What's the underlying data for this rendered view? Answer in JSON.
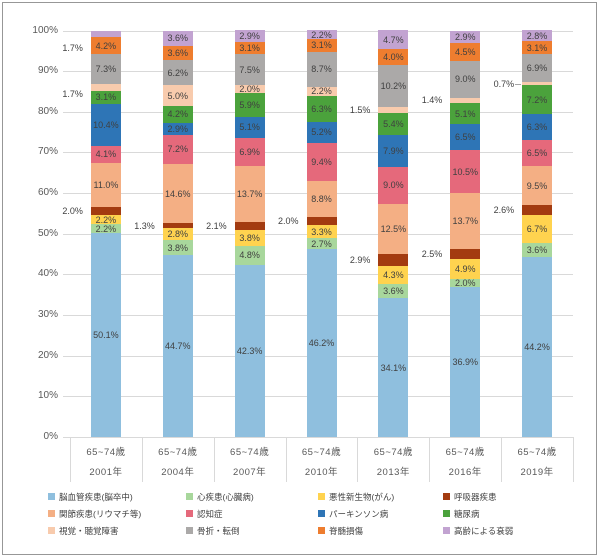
{
  "chart_data": {
    "type": "bar",
    "stacked": true,
    "percent_stacked": true,
    "title": "",
    "x_axis": {
      "group_label": "65~74歳",
      "categories": [
        "2001年",
        "2004年",
        "2007年",
        "2010年",
        "2013年",
        "2016年",
        "2019年"
      ]
    },
    "y_axis": {
      "min": 0,
      "max": 100,
      "grid": true,
      "ticks": [
        "0%",
        "10%",
        "20%",
        "30%",
        "40%",
        "50%",
        "60%",
        "70%",
        "80%",
        "90%",
        "100%"
      ]
    },
    "legend": {
      "position": "bottom",
      "columns": 4
    },
    "series": [
      {
        "name": "脳血管疾患(脳卒中)",
        "color": "#8FBFDE",
        "values": [
          50.1,
          44.7,
          42.3,
          46.2,
          34.1,
          36.9,
          44.2
        ]
      },
      {
        "name": "心疾患(心臓病)",
        "color": "#A8D79C",
        "values": [
          2.2,
          3.8,
          4.8,
          2.7,
          3.6,
          2.0,
          3.6
        ]
      },
      {
        "name": "悪性新生物(がん)",
        "color": "#FFD34F",
        "values": [
          2.2,
          2.8,
          3.8,
          3.3,
          4.3,
          4.9,
          6.7
        ]
      },
      {
        "name": "呼吸器疾患",
        "color": "#A33B10",
        "values": [
          2.0,
          1.3,
          2.1,
          2.0,
          2.9,
          2.5,
          2.6
        ],
        "outside_label_categories": [
          0,
          1,
          2,
          3,
          4,
          5,
          6
        ]
      },
      {
        "name": "関節疾患(リウマチ等)",
        "color": "#F4AF84",
        "values": [
          11.0,
          14.6,
          13.7,
          8.8,
          12.5,
          13.7,
          9.5
        ]
      },
      {
        "name": "認知症",
        "color": "#E5697B",
        "values": [
          4.1,
          7.2,
          6.9,
          9.4,
          9.0,
          10.5,
          6.5
        ]
      },
      {
        "name": "パーキンソン病",
        "color": "#2E75B6",
        "values": [
          10.4,
          2.9,
          5.1,
          5.2,
          7.9,
          6.5,
          6.3
        ]
      },
      {
        "name": "糖尿病",
        "color": "#4BA23C",
        "values": [
          3.1,
          4.2,
          5.9,
          6.3,
          5.4,
          5.1,
          7.2
        ]
      },
      {
        "name": "視覚・聴覚障害",
        "color": "#F8CBAD",
        "values": [
          1.7,
          5.0,
          2.0,
          2.2,
          1.5,
          1.4,
          0.7
        ],
        "outside_label_categories": [
          0,
          4,
          5,
          6
        ],
        "leader_line_categories": [
          6
        ]
      },
      {
        "name": "骨折・転倒",
        "color": "#ABA9A8",
        "values": [
          7.3,
          6.2,
          7.5,
          8.7,
          10.2,
          9.0,
          6.9
        ]
      },
      {
        "name": "脊髄損傷",
        "color": "#EE7D2F",
        "values": [
          4.2,
          3.6,
          3.1,
          3.1,
          4.0,
          4.5,
          3.1
        ]
      },
      {
        "name": "高齢による衰弱",
        "color": "#C2A3D1",
        "values": [
          1.7,
          3.6,
          2.9,
          2.2,
          4.7,
          2.9,
          2.8
        ],
        "outside_label_categories": [
          0
        ]
      }
    ],
    "value_label_format": "0.0%",
    "colors": {
      "value_label": "#404040",
      "axis_text": "#595959",
      "gridline": "#d9d9d9",
      "frame_border": "#979797"
    }
  }
}
